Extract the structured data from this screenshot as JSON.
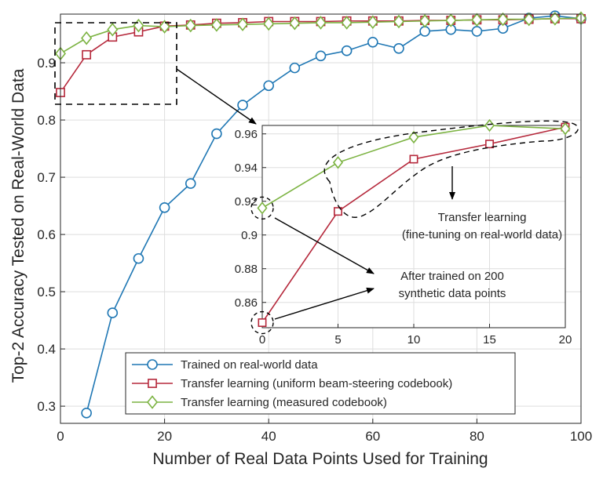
{
  "chart_data": {
    "type": "line",
    "xlabel": "Number of Real Data Points Used for Training",
    "ylabel": "Top-2 Accuracy Tested on Real-World Data",
    "xlim": [
      0,
      100
    ],
    "ylim": [
      0.27,
      0.985
    ],
    "xticks": [
      0,
      20,
      40,
      60,
      80,
      100
    ],
    "yticks": [
      0.3,
      0.4,
      0.5,
      0.6,
      0.7,
      0.8,
      0.9
    ],
    "grid": true,
    "legend_position": "bottom-center",
    "series": [
      {
        "name": "Trained on real-world data",
        "color": "#1f77b4",
        "marker": "circle",
        "x": [
          5,
          10,
          15,
          20,
          25,
          30,
          35,
          40,
          45,
          50,
          55,
          60,
          65,
          70,
          75,
          80,
          85,
          90,
          95,
          100
        ],
        "y": [
          0.288,
          0.463,
          0.558,
          0.647,
          0.689,
          0.776,
          0.826,
          0.86,
          0.891,
          0.912,
          0.921,
          0.936,
          0.925,
          0.955,
          0.958,
          0.955,
          0.96,
          0.978,
          0.982,
          0.977
        ]
      },
      {
        "name": "Transfer learning (uniform beam-steering codebook)",
        "color": "#b5283b",
        "marker": "square",
        "x": [
          0,
          5,
          10,
          15,
          20,
          25,
          30,
          35,
          40,
          45,
          50,
          55,
          60,
          65,
          70,
          75,
          80,
          85,
          90,
          95,
          100
        ],
        "y": [
          0.848,
          0.914,
          0.945,
          0.954,
          0.964,
          0.966,
          0.969,
          0.97,
          0.972,
          0.972,
          0.972,
          0.973,
          0.973,
          0.973,
          0.974,
          0.974,
          0.975,
          0.975,
          0.976,
          0.977,
          0.977
        ]
      },
      {
        "name": "Transfer learning (measured codebook)",
        "color": "#7cb342",
        "marker": "diamond",
        "x": [
          0,
          5,
          10,
          15,
          20,
          25,
          30,
          35,
          40,
          45,
          50,
          55,
          60,
          65,
          70,
          75,
          80,
          85,
          90,
          95,
          100
        ],
        "y": [
          0.916,
          0.943,
          0.958,
          0.965,
          0.963,
          0.965,
          0.966,
          0.967,
          0.968,
          0.969,
          0.97,
          0.97,
          0.971,
          0.972,
          0.973,
          0.974,
          0.975,
          0.976,
          0.976,
          0.977,
          0.978
        ]
      }
    ],
    "inset": {
      "xlim": [
        0,
        20
      ],
      "ylim": [
        0.845,
        0.965
      ],
      "xticks": [
        0,
        5,
        10,
        15,
        20
      ],
      "yticks": [
        0.86,
        0.88,
        0.9,
        0.92,
        0.94,
        0.96
      ],
      "ytick_labels": [
        "0.86",
        "0.88",
        "0.9",
        "0.92",
        "0.94",
        "0.96"
      ],
      "x": [
        0,
        5,
        10,
        15,
        20
      ]
    },
    "annotations": [
      {
        "lines": [
          "Transfer learning",
          "(fine-tuning on real-world data)"
        ]
      },
      {
        "lines": [
          "After trained on 200",
          "synthetic data points"
        ]
      }
    ]
  }
}
